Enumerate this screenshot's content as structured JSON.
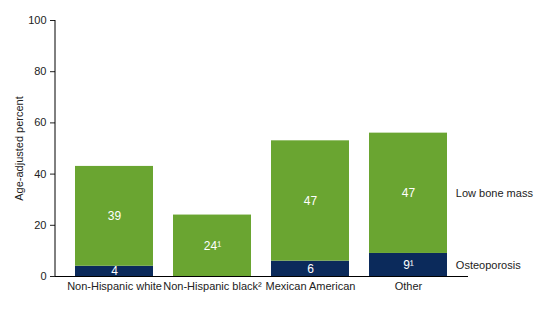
{
  "chart_data": {
    "type": "bar",
    "stacked": true,
    "data_labels": true,
    "categories": [
      "Non-Hispanic white",
      "Non-Hispanic black²",
      "Mexican American",
      "Other"
    ],
    "series": [
      {
        "name": "Osteoporosis",
        "color": "#0b2a5b",
        "values": [
          4,
          null,
          6,
          9
        ],
        "value_labels": [
          "4",
          null,
          "6",
          "9¹"
        ]
      },
      {
        "name": "Low bone mass",
        "color": "#6aa531",
        "values": [
          39,
          24,
          47,
          47
        ],
        "value_labels": [
          "39",
          "24¹",
          "47",
          "47"
        ]
      }
    ],
    "y_label": "Age-adjusted percent",
    "ylim": [
      0,
      100
    ],
    "yticks": [
      0,
      20,
      40,
      60,
      80,
      100
    ],
    "legend": "right",
    "grid": false
  }
}
